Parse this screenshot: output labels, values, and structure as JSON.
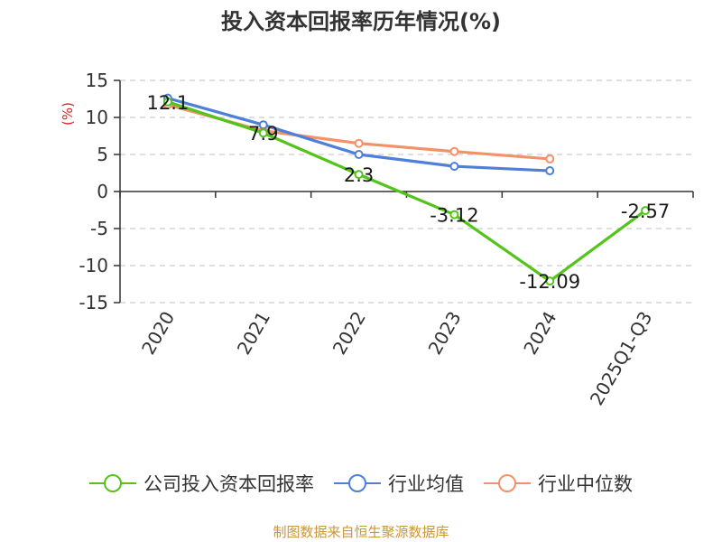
{
  "chart_data": {
    "type": "line",
    "title": "投入资本回报率历年情况(%)",
    "ylabel": "(%)",
    "categories": [
      "2020",
      "2021",
      "2022",
      "2023",
      "2024",
      "2025Q1-Q3"
    ],
    "ylim": [
      -15,
      15
    ],
    "yticks": [
      15,
      10,
      5,
      0,
      -5,
      -10,
      -15
    ],
    "grid": true,
    "legend_position": "bottom",
    "series": [
      {
        "name": "公司投入资本回报率",
        "color": "#52c41a",
        "values": [
          12.1,
          7.9,
          2.3,
          -3.12,
          -12.09,
          -2.57
        ],
        "labels": [
          "12.1",
          "7.9",
          "2.3",
          "-3.12",
          "-12.09",
          "-2.57"
        ]
      },
      {
        "name": "行业均值",
        "color": "#4e7fd9",
        "values": [
          12.6,
          9.0,
          5.0,
          3.4,
          2.8,
          null
        ]
      },
      {
        "name": "行业中位数",
        "color": "#f59166",
        "values": [
          11.7,
          8.2,
          6.5,
          5.4,
          4.4,
          null
        ]
      }
    ]
  },
  "source": "制图数据来自恒生聚源数据库"
}
